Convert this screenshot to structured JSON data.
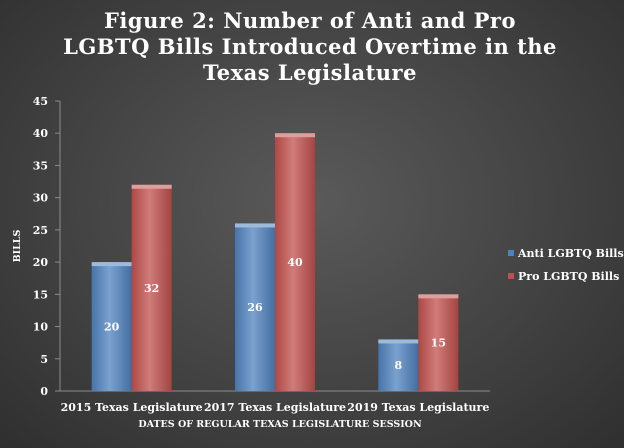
{
  "chart_data": {
    "type": "bar",
    "title": "Figure 2: Number of Anti and Pro LGBTQ Bills Introduced Overtime in the Texas Legislature",
    "xlabel": "DATES OF REGULAR TEXAS LEGISLATURE SESSION",
    "ylabel": "BILLS",
    "ylim": [
      0,
      45
    ],
    "yticks": [
      0,
      5,
      10,
      15,
      20,
      25,
      30,
      35,
      40,
      45
    ],
    "grid": false,
    "legend_position": "right",
    "categories": [
      "2015 Texas Legislature",
      "2017 Texas Legislature",
      "2019 Texas Legislature"
    ],
    "series": [
      {
        "name": "Anti LGBTQ Bills",
        "values": [
          20,
          26,
          8
        ],
        "color": "#4f81bd"
      },
      {
        "name": "Pro LGBTQ Bills",
        "values": [
          32,
          40,
          15
        ],
        "color": "#c0504d"
      }
    ]
  }
}
